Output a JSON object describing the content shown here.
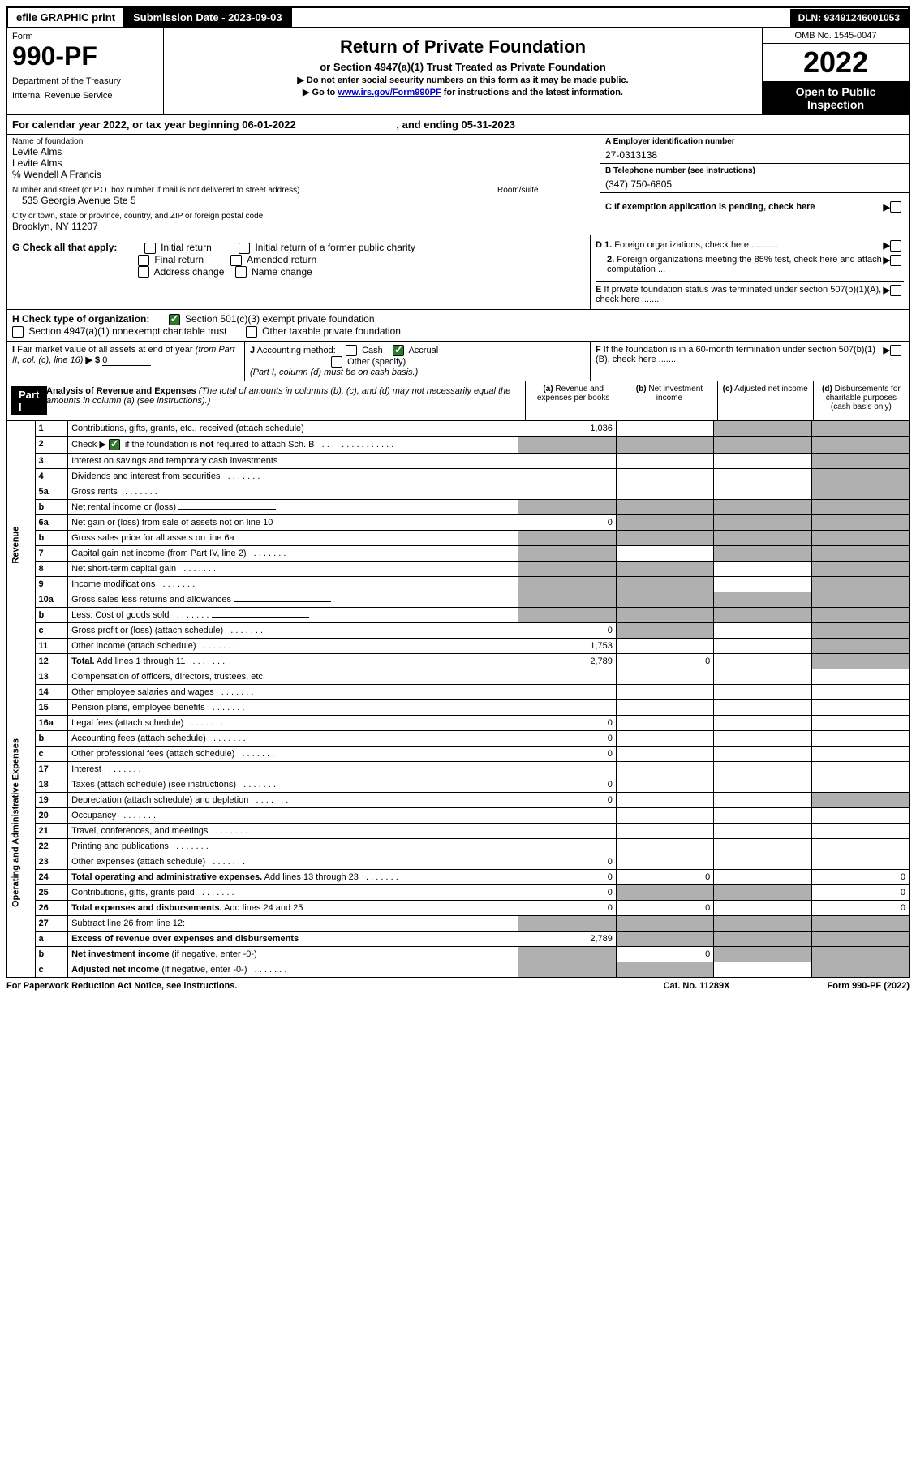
{
  "top_bar": {
    "efile": "efile GRAPHIC print",
    "sub_label": "Submission Date - 2023-09-03",
    "dln": "DLN: 93491246001053"
  },
  "header": {
    "form_word": "Form",
    "form_num": "990-PF",
    "dept": "Department of the Treasury",
    "irs": "Internal Revenue Service",
    "title": "Return of Private Foundation",
    "subtitle": "or Section 4947(a)(1) Trust Treated as Private Foundation",
    "note1": "▶ Do not enter social security numbers on this form as it may be made public.",
    "note2_pre": "▶ Go to ",
    "note2_link": "www.irs.gov/Form990PF",
    "note2_post": " for instructions and the latest information.",
    "omb": "OMB No. 1545-0047",
    "year": "2022",
    "open": "Open to Public Inspection"
  },
  "cal_year": {
    "text_pre": "For calendar year 2022, or tax year beginning ",
    "begin": "06-01-2022",
    "text_mid": " , and ending ",
    "end": "05-31-2023"
  },
  "foundation": {
    "name_label": "Name of foundation",
    "name1": "Levite Alms",
    "name2": "Levite Alms",
    "care_of": "% Wendell A Francis",
    "addr_label": "Number and street (or P.O. box number if mail is not delivered to street address)",
    "addr": "535 Georgia Avenue Ste 5",
    "room_label": "Room/suite",
    "city_label": "City or town, state or province, country, and ZIP or foreign postal code",
    "city": "Brooklyn, NY  11207",
    "ein_label": "A Employer identification number",
    "ein": "27-0313138",
    "phone_label": "B Telephone number (see instructions)",
    "phone": "(347) 750-6805",
    "c_label": "C If exemption application is pending, check here"
  },
  "g_check": {
    "label": "G Check all that apply:",
    "opts": [
      "Initial return",
      "Final return",
      "Address change",
      "Initial return of a former public charity",
      "Amended return",
      "Name change"
    ]
  },
  "d_section": {
    "d1": "D 1. Foreign organizations, check here............",
    "d2": "2. Foreign organizations meeting the 85% test, check here and attach computation ...",
    "e": "E  If private foundation status was terminated under section 507(b)(1)(A), check here .......",
    "f": "F  If the foundation is in a 60-month termination under section 507(b)(1)(B), check here ......."
  },
  "h_row": {
    "label": "H Check type of organization:",
    "opt1": "Section 501(c)(3) exempt private foundation",
    "opt2": "Section 4947(a)(1) nonexempt charitable trust",
    "opt3": "Other taxable private foundation"
  },
  "i_section": {
    "label": "I Fair market value of all assets at end of year (from Part II, col. (c), line 16)",
    "arrow": "▶ $",
    "value": "0"
  },
  "j_section": {
    "label": "J Accounting method:",
    "cash": "Cash",
    "accrual": "Accrual",
    "other": "Other (specify)",
    "note": "(Part I, column (d) must be on cash basis.)"
  },
  "part1": {
    "part_label": "Part I",
    "title": "Analysis of Revenue and Expenses",
    "title_note": "(The total of amounts in columns (b), (c), and (d) may not necessarily equal the amounts in column (a) (see instructions).)",
    "col_a": "(a) Revenue and expenses per books",
    "col_b": "(b) Net investment income",
    "col_c": "(c) Adjusted net income",
    "col_d": "(d) Disbursements for charitable purposes (cash basis only)"
  },
  "sections": {
    "revenue": "Revenue",
    "expenses": "Operating and Administrative Expenses"
  },
  "rows": [
    {
      "n": "1",
      "desc": "Contributions, gifts, grants, etc., received (attach schedule)",
      "a": "1,036",
      "b": "",
      "c_shade": true,
      "d_shade": true
    },
    {
      "n": "2",
      "desc": "Check ▶ ☑ if the foundation is <b>not</b> required to attach Sch. B",
      "dots": true,
      "a_shade": true,
      "b_shade": true,
      "c_shade": true,
      "d_shade": true
    },
    {
      "n": "3",
      "desc": "Interest on savings and temporary cash investments",
      "a": "",
      "b": "",
      "c": "",
      "d_shade": true
    },
    {
      "n": "4",
      "desc": "Dividends and interest from securities",
      "dots": true,
      "a": "",
      "b": "",
      "c": "",
      "d_shade": true
    },
    {
      "n": "5a",
      "desc": "Gross rents",
      "dots": true,
      "a": "",
      "b": "",
      "c": "",
      "d_shade": true
    },
    {
      "n": "b",
      "desc": "Net rental income or (loss)",
      "inline_field": true,
      "a_shade": true,
      "b_shade": true,
      "c_shade": true,
      "d_shade": true
    },
    {
      "n": "6a",
      "desc": "Net gain or (loss) from sale of assets not on line 10",
      "a": "0",
      "b_shade": true,
      "c_shade": true,
      "d_shade": true
    },
    {
      "n": "b",
      "desc": "Gross sales price for all assets on line 6a",
      "inline_field": true,
      "a_shade": true,
      "b_shade": true,
      "c_shade": true,
      "d_shade": true
    },
    {
      "n": "7",
      "desc": "Capital gain net income (from Part IV, line 2)",
      "dots": true,
      "a_shade": true,
      "b": "",
      "c_shade": true,
      "d_shade": true
    },
    {
      "n": "8",
      "desc": "Net short-term capital gain",
      "dots": true,
      "a_shade": true,
      "b_shade": true,
      "c": "",
      "d_shade": true
    },
    {
      "n": "9",
      "desc": "Income modifications",
      "dots": true,
      "a_shade": true,
      "b_shade": true,
      "c": "",
      "d_shade": true
    },
    {
      "n": "10a",
      "desc": "Gross sales less returns and allowances",
      "inline_field": true,
      "a_shade": true,
      "b_shade": true,
      "c_shade": true,
      "d_shade": true
    },
    {
      "n": "b",
      "desc": "Less: Cost of goods sold",
      "dots": true,
      "inline_field": true,
      "a_shade": true,
      "b_shade": true,
      "c_shade": true,
      "d_shade": true
    },
    {
      "n": "c",
      "desc": "Gross profit or (loss) (attach schedule)",
      "dots": true,
      "a": "0",
      "b_shade": true,
      "c": "",
      "d_shade": true
    },
    {
      "n": "11",
      "desc": "Other income (attach schedule)",
      "dots": true,
      "a": "1,753",
      "b": "",
      "c": "",
      "d_shade": true
    },
    {
      "n": "12",
      "desc": "<b>Total.</b> Add lines 1 through 11",
      "dots": true,
      "a": "2,789",
      "b": "0",
      "c": "",
      "d_shade": true
    },
    {
      "section_break": "expenses"
    },
    {
      "n": "13",
      "desc": "Compensation of officers, directors, trustees, etc.",
      "a": "",
      "b": "",
      "c": "",
      "d": ""
    },
    {
      "n": "14",
      "desc": "Other employee salaries and wages",
      "dots": true,
      "a": "",
      "b": "",
      "c": "",
      "d": ""
    },
    {
      "n": "15",
      "desc": "Pension plans, employee benefits",
      "dots": true,
      "a": "",
      "b": "",
      "c": "",
      "d": ""
    },
    {
      "n": "16a",
      "desc": "Legal fees (attach schedule)",
      "dots": true,
      "a": "0",
      "b": "",
      "c": "",
      "d": ""
    },
    {
      "n": "b",
      "desc": "Accounting fees (attach schedule)",
      "dots": true,
      "a": "0",
      "b": "",
      "c": "",
      "d": ""
    },
    {
      "n": "c",
      "desc": "Other professional fees (attach schedule)",
      "dots": true,
      "a": "0",
      "b": "",
      "c": "",
      "d": ""
    },
    {
      "n": "17",
      "desc": "Interest",
      "dots": true,
      "a": "",
      "b": "",
      "c": "",
      "d": ""
    },
    {
      "n": "18",
      "desc": "Taxes (attach schedule) (see instructions)",
      "dots": true,
      "a": "0",
      "b": "",
      "c": "",
      "d": ""
    },
    {
      "n": "19",
      "desc": "Depreciation (attach schedule) and depletion",
      "dots": true,
      "a": "0",
      "b": "",
      "c": "",
      "d_shade": true
    },
    {
      "n": "20",
      "desc": "Occupancy",
      "dots": true,
      "a": "",
      "b": "",
      "c": "",
      "d": ""
    },
    {
      "n": "21",
      "desc": "Travel, conferences, and meetings",
      "dots": true,
      "a": "",
      "b": "",
      "c": "",
      "d": ""
    },
    {
      "n": "22",
      "desc": "Printing and publications",
      "dots": true,
      "a": "",
      "b": "",
      "c": "",
      "d": ""
    },
    {
      "n": "23",
      "desc": "Other expenses (attach schedule)",
      "dots": true,
      "a": "0",
      "b": "",
      "c": "",
      "d": ""
    },
    {
      "n": "24",
      "desc": "<b>Total operating and administrative expenses.</b> Add lines 13 through 23",
      "dots": true,
      "a": "0",
      "b": "0",
      "c": "",
      "d": "0"
    },
    {
      "n": "25",
      "desc": "Contributions, gifts, grants paid",
      "dots": true,
      "a": "0",
      "b_shade": true,
      "c_shade": true,
      "d": "0"
    },
    {
      "n": "26",
      "desc": "<b>Total expenses and disbursements.</b> Add lines 24 and 25",
      "a": "0",
      "b": "0",
      "c": "",
      "d": "0"
    },
    {
      "n": "27",
      "desc": "Subtract line 26 from line 12:",
      "a_shade": true,
      "b_shade": true,
      "c_shade": true,
      "d_shade": true
    },
    {
      "n": "a",
      "desc": "<b>Excess of revenue over expenses and disbursements</b>",
      "a": "2,789",
      "b_shade": true,
      "c_shade": true,
      "d_shade": true
    },
    {
      "n": "b",
      "desc": "<b>Net investment income</b> (if negative, enter -0-)",
      "a_shade": true,
      "b": "0",
      "c_shade": true,
      "d_shade": true
    },
    {
      "n": "c",
      "desc": "<b>Adjusted net income</b> (if negative, enter -0-)",
      "dots": true,
      "a_shade": true,
      "b_shade": true,
      "c": "",
      "d_shade": true
    }
  ],
  "footer": {
    "left": "For Paperwork Reduction Act Notice, see instructions.",
    "mid": "Cat. No. 11289X",
    "right": "Form 990-PF (2022)"
  },
  "colors": {
    "shade": "#b0b0b0",
    "link": "#0000cc",
    "check": "#2a7a2a"
  }
}
